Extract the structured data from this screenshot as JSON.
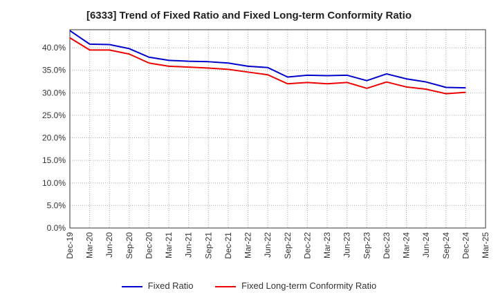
{
  "chart_data": {
    "type": "line",
    "title": "[6333]  Trend of Fixed Ratio and Fixed Long-term Conformity Ratio",
    "xlabel": "",
    "ylabel": "",
    "x": [
      "Dec-19",
      "Mar-20",
      "Jun-20",
      "Sep-20",
      "Dec-20",
      "Mar-21",
      "Jun-21",
      "Sep-21",
      "Dec-21",
      "Mar-22",
      "Jun-22",
      "Sep-22",
      "Dec-22",
      "Mar-23",
      "Jun-23",
      "Sep-23",
      "Dec-23",
      "Mar-24",
      "Jun-24",
      "Sep-24",
      "Dec-24"
    ],
    "x_ticks": [
      "Dec-19",
      "Mar-20",
      "Jun-20",
      "Sep-20",
      "Dec-20",
      "Mar-21",
      "Jun-21",
      "Sep-21",
      "Dec-21",
      "Mar-22",
      "Jun-22",
      "Sep-22",
      "Dec-22",
      "Mar-23",
      "Jun-23",
      "Sep-23",
      "Dec-23",
      "Mar-24",
      "Jun-24",
      "Sep-24",
      "Dec-24",
      "Mar-25"
    ],
    "y_ticks": [
      "0.0%",
      "5.0%",
      "10.0%",
      "15.0%",
      "20.0%",
      "25.0%",
      "30.0%",
      "35.0%",
      "40.0%"
    ],
    "ylim": [
      0,
      44
    ],
    "grid": true,
    "legend_position": "bottom",
    "series": [
      {
        "name": "Fixed Ratio",
        "color": "#0000cc",
        "values": [
          43.8,
          40.8,
          40.7,
          39.8,
          37.9,
          37.2,
          37.0,
          36.9,
          36.6,
          35.9,
          35.6,
          33.5,
          33.9,
          33.8,
          33.9,
          32.7,
          34.2,
          33.1,
          32.4,
          31.2,
          31.1
        ]
      },
      {
        "name": "Fixed Long-term Conformity Ratio",
        "color": "#ee0000",
        "values": [
          42.2,
          39.5,
          39.5,
          38.6,
          36.6,
          35.9,
          35.7,
          35.5,
          35.2,
          34.6,
          34.0,
          32.0,
          32.3,
          32.0,
          32.3,
          31.0,
          32.4,
          31.3,
          30.8,
          29.8,
          30.1
        ]
      }
    ]
  }
}
